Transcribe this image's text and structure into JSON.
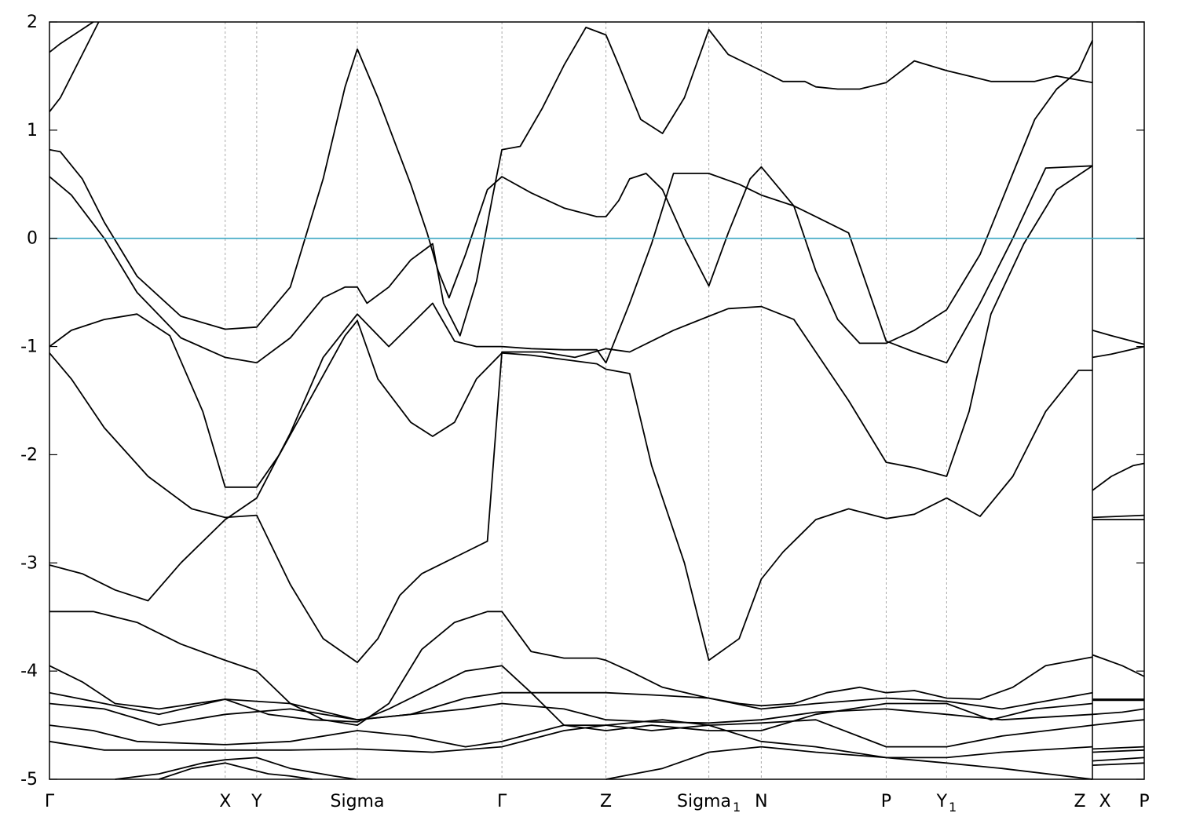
{
  "chart_data": {
    "type": "line",
    "title": "",
    "xlabel": "",
    "ylabel": "",
    "ylim": [
      -5,
      2
    ],
    "yticks": [
      2,
      1,
      0,
      -1,
      -2,
      -3,
      -4,
      -5
    ],
    "fermi_level": 0,
    "fermi_color": "#3aa7c3",
    "line_color": "#000000",
    "kpoints": [
      {
        "label": "Γ",
        "sub": "",
        "x": 0.0
      },
      {
        "label": "X",
        "sub": "",
        "x": 0.1605
      },
      {
        "label": "Y",
        "sub": "",
        "x": 0.1893
      },
      {
        "label": "Sigma",
        "sub": "",
        "x": 0.2812
      },
      {
        "label": "Γ",
        "sub": "",
        "x": 0.4133
      },
      {
        "label": "Z",
        "sub": "",
        "x": 0.5083
      },
      {
        "label": "Sigma",
        "sub": "1",
        "x": 0.6023
      },
      {
        "label": "N",
        "sub": "",
        "x": 0.6502
      },
      {
        "label": "P",
        "sub": "",
        "x": 0.7643
      },
      {
        "label": "Y",
        "sub": "1",
        "x": 0.8195
      },
      {
        "label": "Z",
        "sub": "",
        "x": 0.9527
      },
      {
        "label": "X",
        "sub": "",
        "x": 0.9527
      },
      {
        "label": "P",
        "sub": "",
        "x": 1.0
      }
    ],
    "x_breaks": [
      0.9527
    ],
    "series": [
      {
        "x": [
          0,
          0.01,
          0.04
        ],
        "y": [
          1.72,
          1.8,
          2.0
        ]
      },
      {
        "x": [
          0,
          0.01,
          0.03,
          0.045
        ],
        "y": [
          1.17,
          1.3,
          1.7,
          2.0
        ]
      },
      {
        "x": [
          0,
          0.01,
          0.03,
          0.05,
          0.08,
          0.12,
          0.1605,
          0.1893,
          0.22,
          0.25,
          0.27,
          0.2812,
          0.3,
          0.33,
          0.345,
          0.355,
          0.365,
          0.38,
          0.4,
          0.4133,
          0.44,
          0.47,
          0.5,
          0.5083,
          0.52,
          0.53,
          0.545,
          0.56,
          0.58,
          0.6023,
          0.62,
          0.64,
          0.6502,
          0.68,
          0.7,
          0.72,
          0.74,
          0.7643,
          0.79,
          0.8195,
          0.85,
          0.88,
          0.9,
          0.92,
          0.94,
          0.9527
        ],
        "y": [
          0.82,
          0.8,
          0.55,
          0.15,
          -0.35,
          -0.72,
          -0.84,
          -0.82,
          -0.45,
          0.55,
          1.4,
          1.75,
          1.3,
          0.5,
          0.05,
          -0.3,
          -0.55,
          -0.15,
          0.45,
          0.57,
          0.42,
          0.28,
          0.2,
          0.2,
          0.35,
          0.55,
          0.6,
          0.45,
          0.0,
          -0.44,
          0.05,
          0.55,
          0.66,
          0.3,
          -0.3,
          -0.75,
          -0.97,
          -0.97,
          -0.85,
          -0.66,
          -0.15,
          0.6,
          1.1,
          1.38,
          1.55,
          1.83
        ]
      },
      {
        "x": [
          0,
          0.02,
          0.05,
          0.08,
          0.12,
          0.1605,
          0.1893,
          0.22,
          0.25,
          0.27,
          0.2812,
          0.29,
          0.31,
          0.33,
          0.35,
          0.36,
          0.375,
          0.39,
          0.405,
          0.4133,
          0.43,
          0.45,
          0.47,
          0.49,
          0.5083,
          0.52,
          0.54,
          0.56,
          0.58,
          0.6023,
          0.62,
          0.6502,
          0.67,
          0.69,
          0.7,
          0.72,
          0.74,
          0.7643,
          0.79,
          0.8195,
          0.84,
          0.86,
          0.88,
          0.9,
          0.92,
          0.9527
        ],
        "y": [
          0.57,
          0.4,
          0.0,
          -0.5,
          -0.92,
          -1.1,
          -1.15,
          -0.92,
          -0.55,
          -0.45,
          -0.45,
          -0.6,
          -0.45,
          -0.2,
          -0.05,
          -0.6,
          -0.9,
          -0.4,
          0.4,
          0.82,
          0.85,
          1.2,
          1.6,
          1.95,
          1.88,
          1.6,
          1.1,
          0.97,
          1.3,
          1.93,
          1.7,
          1.55,
          1.45,
          1.45,
          1.4,
          1.38,
          1.38,
          1.44,
          1.64,
          1.55,
          1.5,
          1.45,
          1.45,
          1.45,
          1.5,
          1.44
        ]
      },
      {
        "x": [
          0,
          0.02,
          0.05,
          0.08,
          0.11,
          0.14,
          0.1605,
          0.1893,
          0.21,
          0.24,
          0.27,
          0.2812,
          0.3,
          0.33,
          0.35,
          0.37,
          0.39,
          0.4133,
          0.44,
          0.47,
          0.5,
          0.5083,
          0.53,
          0.55,
          0.58,
          0.6023,
          0.63,
          0.6502,
          0.67,
          0.7,
          0.73,
          0.7643,
          0.79,
          0.8195,
          0.85,
          0.88,
          0.91,
          0.94,
          0.9527
        ],
        "y": [
          -1.0,
          -0.85,
          -0.75,
          -0.7,
          -0.9,
          -1.6,
          -2.3,
          -2.3,
          -2.0,
          -1.45,
          -0.9,
          -0.76,
          -1.3,
          -1.7,
          -1.83,
          -1.7,
          -1.3,
          -1.06,
          -1.08,
          -1.12,
          -1.16,
          -1.21,
          -1.25,
          -2.1,
          -3.0,
          -3.9,
          -3.7,
          -3.15,
          -2.9,
          -2.6,
          -2.5,
          -2.59,
          -2.55,
          -2.4,
          -2.57,
          -2.2,
          -1.6,
          -1.22,
          -1.22
        ]
      },
      {
        "x": [
          0,
          0.02,
          0.05,
          0.09,
          0.13,
          0.1605,
          0.1893,
          0.22,
          0.25,
          0.2812,
          0.3,
          0.32,
          0.34,
          0.36,
          0.38,
          0.4,
          0.4133,
          0.45,
          0.48,
          0.5083,
          0.53,
          0.55,
          0.57,
          0.6023,
          0.62,
          0.6502,
          0.68,
          0.7,
          0.73,
          0.7643,
          0.79,
          0.8195,
          0.84,
          0.86,
          0.89,
          0.92,
          0.9527
        ],
        "y": [
          -1.06,
          -1.3,
          -1.75,
          -2.2,
          -2.5,
          -2.58,
          -2.56,
          -3.2,
          -3.7,
          -3.92,
          -3.7,
          -3.3,
          -3.1,
          -3.0,
          -2.9,
          -2.8,
          -1.05,
          -1.05,
          -1.1,
          -1.02,
          -1.05,
          -0.95,
          -0.85,
          -0.72,
          -0.65,
          -0.63,
          -0.75,
          -1.05,
          -1.5,
          -2.07,
          -2.12,
          -2.2,
          -1.6,
          -0.7,
          -0.05,
          0.45,
          0.67
        ]
      },
      {
        "x": [
          0,
          0.03,
          0.06,
          0.09,
          0.12,
          0.1605,
          0.1893,
          0.22,
          0.25,
          0.2812,
          0.31,
          0.33,
          0.35,
          0.37,
          0.39,
          0.4133,
          0.44,
          0.47,
          0.5,
          0.5083,
          0.53,
          0.55,
          0.57,
          0.6023,
          0.63,
          0.6502,
          0.68,
          0.7,
          0.73,
          0.7643,
          0.79,
          0.8195,
          0.85,
          0.88,
          0.91,
          0.9527
        ],
        "y": [
          -3.02,
          -3.1,
          -3.25,
          -3.35,
          -3.0,
          -2.6,
          -2.4,
          -1.8,
          -1.1,
          -0.7,
          -1.0,
          -0.8,
          -0.6,
          -0.95,
          -1.0,
          -1.0,
          -1.02,
          -1.03,
          -1.03,
          -1.15,
          -0.6,
          -0.05,
          0.6,
          0.6,
          0.5,
          0.4,
          0.3,
          0.2,
          0.05,
          -0.95,
          -1.05,
          -1.15,
          -0.6,
          0.0,
          0.65,
          0.67
        ]
      },
      {
        "x": [
          0,
          0.04,
          0.08,
          0.12,
          0.1605,
          0.1893,
          0.22,
          0.25,
          0.2812,
          0.31,
          0.34,
          0.37,
          0.4,
          0.4133,
          0.44,
          0.47,
          0.5,
          0.5083,
          0.53,
          0.56,
          0.6023,
          0.63,
          0.6502,
          0.68,
          0.71,
          0.74,
          0.7643,
          0.79,
          0.8195,
          0.85,
          0.88,
          0.91,
          0.9527
        ],
        "y": [
          -3.45,
          -3.45,
          -3.55,
          -3.75,
          -3.9,
          -4.0,
          -4.3,
          -4.45,
          -4.5,
          -4.3,
          -3.8,
          -3.55,
          -3.45,
          -3.45,
          -3.82,
          -3.88,
          -3.88,
          -3.9,
          -4.0,
          -4.15,
          -4.25,
          -4.3,
          -4.32,
          -4.3,
          -4.2,
          -4.15,
          -4.2,
          -4.18,
          -4.25,
          -4.26,
          -4.15,
          -3.95,
          -3.87
        ]
      },
      {
        "x": [
          0,
          0.03,
          0.06,
          0.1,
          0.1605,
          0.2,
          0.24,
          0.2812,
          0.31,
          0.35,
          0.38,
          0.4133,
          0.44,
          0.47,
          0.5083,
          0.55,
          0.6023,
          0.6502,
          0.7,
          0.7643,
          0.8195,
          0.86,
          0.9,
          0.9527
        ],
        "y": [
          -3.95,
          -4.1,
          -4.3,
          -4.35,
          -4.26,
          -4.4,
          -4.45,
          -4.47,
          -4.35,
          -4.15,
          -4.0,
          -3.95,
          -4.2,
          -4.5,
          -4.55,
          -4.5,
          -4.55,
          -4.55,
          -4.4,
          -4.3,
          -4.3,
          -4.45,
          -4.35,
          -4.3
        ]
      },
      {
        "x": [
          0,
          0.05,
          0.1,
          0.1605,
          0.22,
          0.2812,
          0.33,
          0.38,
          0.4133,
          0.45,
          0.5083,
          0.55,
          0.6023,
          0.65,
          0.7,
          0.7643,
          0.8195,
          0.87,
          0.9527
        ],
        "y": [
          -4.2,
          -4.3,
          -4.4,
          -4.26,
          -4.3,
          -4.45,
          -4.4,
          -4.25,
          -4.2,
          -4.2,
          -4.2,
          -4.22,
          -4.25,
          -4.35,
          -4.3,
          -4.25,
          -4.28,
          -4.35,
          -4.2
        ]
      },
      {
        "x": [
          0,
          0.05,
          0.1,
          0.1605,
          0.22,
          0.2812,
          0.33,
          0.38,
          0.4133,
          0.47,
          0.5083,
          0.55,
          0.6023,
          0.65,
          0.7,
          0.7643,
          0.8195,
          0.87,
          0.9527
        ],
        "y": [
          -4.3,
          -4.35,
          -4.5,
          -4.4,
          -4.35,
          -4.45,
          -4.4,
          -4.35,
          -4.3,
          -4.35,
          -4.45,
          -4.47,
          -4.48,
          -4.45,
          -4.38,
          -4.35,
          -4.4,
          -4.45,
          -4.4
        ]
      },
      {
        "x": [
          0,
          0.04,
          0.08,
          0.1605,
          0.22,
          0.2812,
          0.33,
          0.38,
          0.4133,
          0.47,
          0.5083,
          0.55,
          0.6023,
          0.65,
          0.7,
          0.7643,
          0.8195,
          0.87,
          0.9527
        ],
        "y": [
          -4.5,
          -4.55,
          -4.65,
          -4.68,
          -4.65,
          -4.55,
          -4.6,
          -4.7,
          -4.65,
          -4.5,
          -4.5,
          -4.55,
          -4.5,
          -4.48,
          -4.45,
          -4.7,
          -4.7,
          -4.6,
          -4.5
        ]
      },
      {
        "x": [
          0,
          0.05,
          0.1,
          0.1605,
          0.22,
          0.2812,
          0.35,
          0.4133,
          0.47,
          0.5083,
          0.56,
          0.6023,
          0.65,
          0.7,
          0.7643,
          0.8195,
          0.87,
          0.9527
        ],
        "y": [
          -4.65,
          -4.73,
          -4.73,
          -4.73,
          -4.73,
          -4.72,
          -4.75,
          -4.7,
          -4.55,
          -4.5,
          -4.45,
          -4.5,
          -4.65,
          -4.7,
          -4.8,
          -4.8,
          -4.75,
          -4.7
        ]
      },
      {
        "x": [
          0.06,
          0.1,
          0.14,
          0.1605,
          0.1893,
          0.22,
          0.26,
          0.28
        ],
        "y": [
          -5.0,
          -4.95,
          -4.85,
          -4.82,
          -4.8,
          -4.9,
          -4.97,
          -5.0
        ]
      },
      {
        "x": [
          0.1,
          0.13,
          0.1605,
          0.18,
          0.2,
          0.22,
          0.24
        ],
        "y": [
          -5.0,
          -4.9,
          -4.85,
          -4.9,
          -4.95,
          -4.97,
          -5.0
        ]
      },
      {
        "x": [
          0.5083,
          0.56,
          0.6023,
          0.6502,
          0.7,
          0.7643,
          0.8195,
          0.87,
          0.9527
        ],
        "y": [
          -5.0,
          -4.9,
          -4.75,
          -4.7,
          -4.75,
          -4.8,
          -4.85,
          -4.9,
          -5.0
        ]
      },
      {
        "x": [
          0.9527,
          0.97,
          1.0
        ],
        "y": [
          -0.85,
          -0.9,
          -0.98
        ]
      },
      {
        "x": [
          0.9527,
          0.97,
          1.0
        ],
        "y": [
          -1.1,
          -1.07,
          -1.0
        ]
      },
      {
        "x": [
          0.9527,
          0.97,
          0.99,
          1.0
        ],
        "y": [
          -2.33,
          -2.2,
          -2.1,
          -2.08
        ]
      },
      {
        "x": [
          0.9527,
          1.0
        ],
        "y": [
          -2.58,
          -2.56
        ]
      },
      {
        "x": [
          0.9527,
          1.0
        ],
        "y": [
          -2.6,
          -2.6
        ]
      },
      {
        "x": [
          0.9527,
          0.98,
          1.0
        ],
        "y": [
          -3.85,
          -3.95,
          -4.05
        ]
      },
      {
        "x": [
          0.9527,
          1.0
        ],
        "y": [
          -4.26,
          -4.26
        ]
      },
      {
        "x": [
          0.9527,
          1.0
        ],
        "y": [
          -4.27,
          -4.27
        ]
      },
      {
        "x": [
          0.9527,
          0.98,
          1.0
        ],
        "y": [
          -4.4,
          -4.38,
          -4.35
        ]
      },
      {
        "x": [
          0.9527,
          0.98,
          1.0
        ],
        "y": [
          -4.5,
          -4.47,
          -4.45
        ]
      },
      {
        "x": [
          0.9527,
          1.0
        ],
        "y": [
          -4.72,
          -4.7
        ]
      },
      {
        "x": [
          0.9527,
          1.0
        ],
        "y": [
          -4.75,
          -4.73
        ]
      },
      {
        "x": [
          0.9527,
          1.0
        ],
        "y": [
          -4.83,
          -4.8
        ]
      },
      {
        "x": [
          0.9527,
          1.0
        ],
        "y": [
          -4.87,
          -4.85
        ]
      }
    ]
  }
}
